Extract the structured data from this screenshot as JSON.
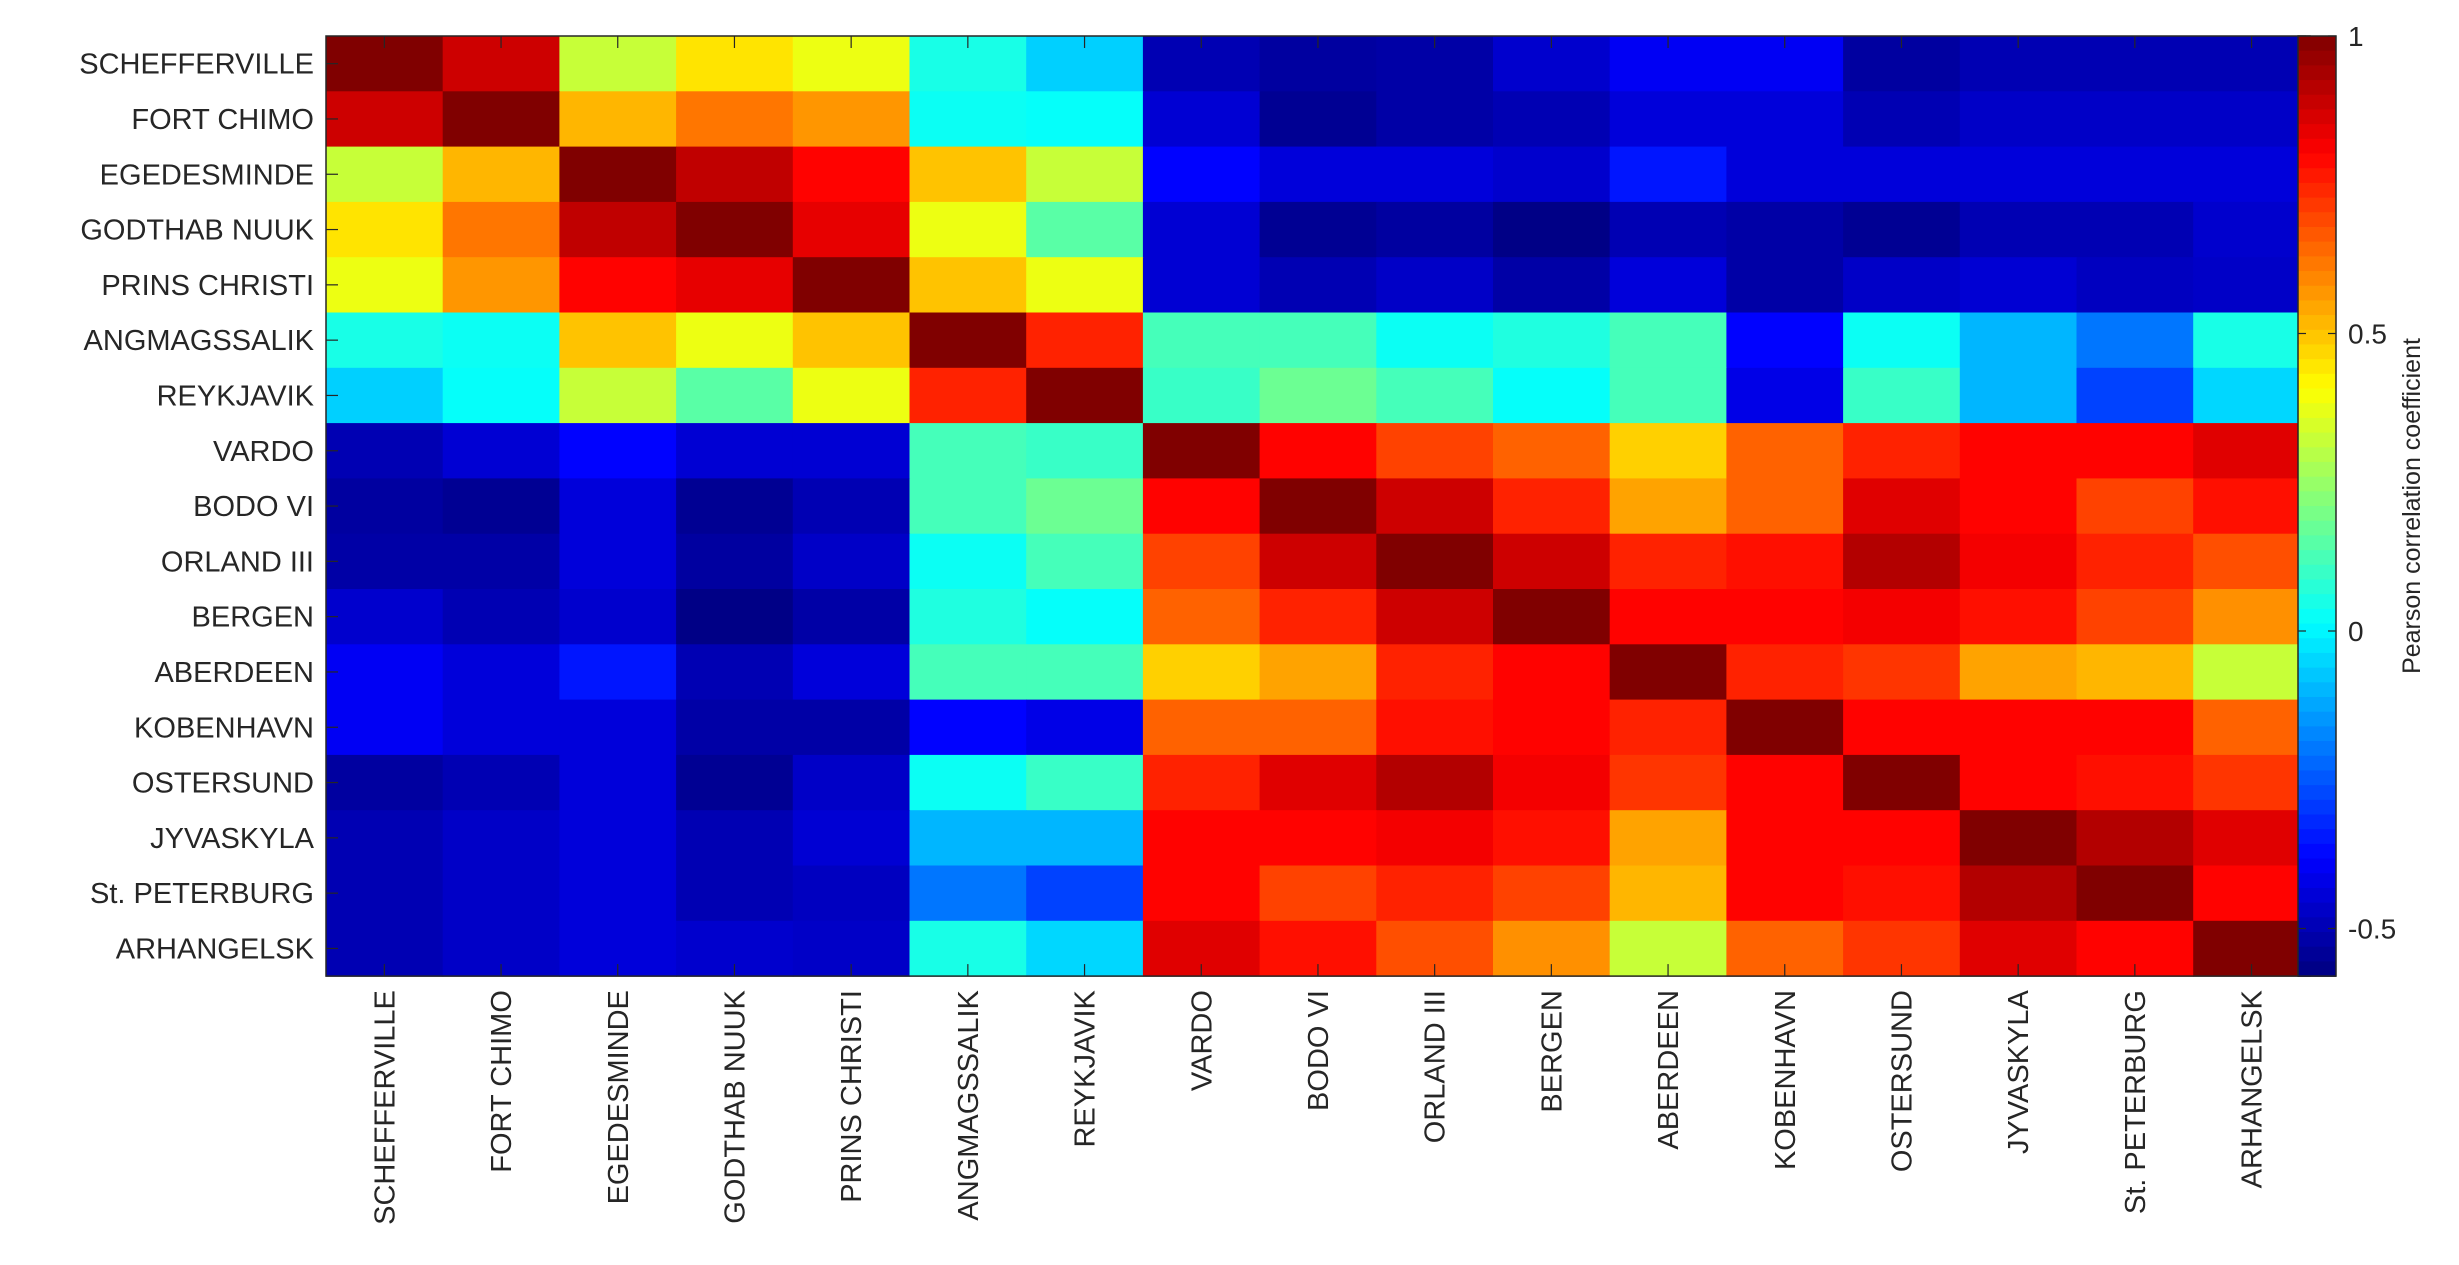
{
  "chart_data": {
    "type": "heatmap",
    "title": "",
    "xlabel": "",
    "ylabel": "",
    "stations": [
      "SCHEFFERVILLE",
      "FORT CHIMO",
      "EGEDESMINDE",
      "GODTHAB NUUK",
      "PRINS CHRISTI",
      "ANGMAGSSALIK",
      "REYKJAVIK",
      "VARDO",
      "BODO VI",
      "ORLAND III",
      "BERGEN",
      "ABERDEEN",
      "KOBENHAVN",
      "OSTERSUND",
      "JYVASKYLA",
      "St. PETERBURG",
      "ARHANGELSK"
    ],
    "x_categories": [
      "SCHEFFERVILLE",
      "FORT CHIMO",
      "EGEDESMINDE",
      "GODTHAB NUUK",
      "PRINS CHRISTI",
      "ANGMAGSSALIK",
      "REYKJAVIK",
      "VARDO",
      "BODO VI",
      "ORLAND III",
      "BERGEN",
      "ABERDEEN",
      "KOBENHAVN",
      "OSTERSUND",
      "JYVASKYLA",
      "St. PETERBURG",
      "ARHANGELSK"
    ],
    "y_categories": [
      "SCHEFFERVILLE",
      "FORT CHIMO",
      "EGEDESMINDE",
      "GODTHAB NUUK",
      "PRINS CHRISTI",
      "ANGMAGSSALIK",
      "REYKJAVIK",
      "VARDO",
      "BODO VI",
      "ORLAND III",
      "BERGEN",
      "ABERDEEN",
      "KOBENHAVN",
      "OSTERSUND",
      "JYVASKYLA",
      "St. PETERBURG",
      "ARHANGELSK"
    ],
    "values": [
      [
        1.0,
        0.88,
        0.32,
        0.45,
        0.38,
        0.05,
        -0.06,
        -0.5,
        -0.53,
        -0.52,
        -0.46,
        -0.4,
        -0.4,
        -0.53,
        -0.5,
        -0.5,
        -0.5
      ],
      [
        0.88,
        1.0,
        0.52,
        0.62,
        0.57,
        0.03,
        0.02,
        -0.45,
        -0.55,
        -0.52,
        -0.5,
        -0.44,
        -0.44,
        -0.5,
        -0.47,
        -0.47,
        -0.47
      ],
      [
        0.32,
        0.52,
        1.0,
        0.9,
        0.8,
        0.5,
        0.32,
        -0.38,
        -0.44,
        -0.44,
        -0.46,
        -0.35,
        -0.44,
        -0.44,
        -0.44,
        -0.44,
        -0.44
      ],
      [
        0.45,
        0.62,
        0.9,
        1.0,
        0.84,
        0.38,
        0.15,
        -0.45,
        -0.55,
        -0.53,
        -0.57,
        -0.5,
        -0.52,
        -0.55,
        -0.5,
        -0.5,
        -0.46
      ],
      [
        0.38,
        0.57,
        0.8,
        0.84,
        1.0,
        0.5,
        0.38,
        -0.45,
        -0.5,
        -0.47,
        -0.52,
        -0.44,
        -0.52,
        -0.47,
        -0.45,
        -0.48,
        -0.47
      ],
      [
        0.05,
        0.03,
        0.5,
        0.38,
        0.5,
        1.0,
        0.75,
        0.12,
        0.12,
        0.03,
        0.06,
        0.12,
        -0.38,
        0.03,
        -0.1,
        -0.2,
        0.05
      ],
      [
        -0.06,
        0.02,
        0.32,
        0.15,
        0.38,
        0.75,
        1.0,
        0.1,
        0.18,
        0.12,
        0.02,
        0.12,
        -0.42,
        0.1,
        -0.1,
        -0.28,
        -0.05
      ],
      [
        -0.5,
        -0.45,
        -0.38,
        -0.45,
        -0.45,
        0.12,
        0.1,
        1.0,
        0.8,
        0.7,
        0.65,
        0.48,
        0.65,
        0.75,
        0.8,
        0.8,
        0.85
      ],
      [
        -0.53,
        -0.55,
        -0.44,
        -0.55,
        -0.5,
        0.12,
        0.18,
        0.8,
        1.0,
        0.88,
        0.75,
        0.55,
        0.65,
        0.85,
        0.8,
        0.7,
        0.78
      ],
      [
        -0.52,
        -0.52,
        -0.44,
        -0.53,
        -0.47,
        0.03,
        0.12,
        0.7,
        0.88,
        1.0,
        0.88,
        0.75,
        0.78,
        0.92,
        0.82,
        0.75,
        0.68
      ],
      [
        -0.46,
        -0.5,
        -0.46,
        -0.57,
        -0.52,
        0.06,
        0.02,
        0.65,
        0.75,
        0.88,
        1.0,
        0.8,
        0.8,
        0.82,
        0.78,
        0.7,
        0.58
      ],
      [
        -0.4,
        -0.44,
        -0.35,
        -0.5,
        -0.44,
        0.12,
        0.12,
        0.48,
        0.55,
        0.75,
        0.8,
        1.0,
        0.75,
        0.72,
        0.55,
        0.52,
        0.32
      ],
      [
        -0.4,
        -0.44,
        -0.44,
        -0.52,
        -0.52,
        -0.38,
        -0.42,
        0.65,
        0.65,
        0.78,
        0.8,
        0.75,
        1.0,
        0.8,
        0.8,
        0.8,
        0.65
      ],
      [
        -0.53,
        -0.5,
        -0.44,
        -0.55,
        -0.47,
        0.03,
        0.1,
        0.75,
        0.85,
        0.92,
        0.82,
        0.72,
        0.8,
        1.0,
        0.8,
        0.78,
        0.72
      ],
      [
        -0.5,
        -0.47,
        -0.44,
        -0.5,
        -0.45,
        -0.1,
        -0.1,
        0.8,
        0.8,
        0.82,
        0.78,
        0.55,
        0.8,
        0.8,
        1.0,
        0.92,
        0.85
      ],
      [
        -0.5,
        -0.47,
        -0.44,
        -0.5,
        -0.48,
        -0.2,
        -0.28,
        0.8,
        0.7,
        0.75,
        0.7,
        0.52,
        0.8,
        0.78,
        0.92,
        1.0,
        0.8
      ],
      [
        -0.5,
        -0.47,
        -0.44,
        -0.46,
        -0.47,
        0.05,
        -0.05,
        0.85,
        0.78,
        0.68,
        0.58,
        0.32,
        0.65,
        0.72,
        0.85,
        0.8,
        1.0
      ]
    ],
    "colormap": "jet",
    "clim": [
      -0.58,
      1.0
    ],
    "colorbar": {
      "label": "Pearson correlation coefficient",
      "ticks": [
        1,
        0.5,
        0,
        -0.5
      ],
      "tick_labels": [
        "1",
        "0.5",
        "0",
        "-0.5"
      ]
    }
  }
}
